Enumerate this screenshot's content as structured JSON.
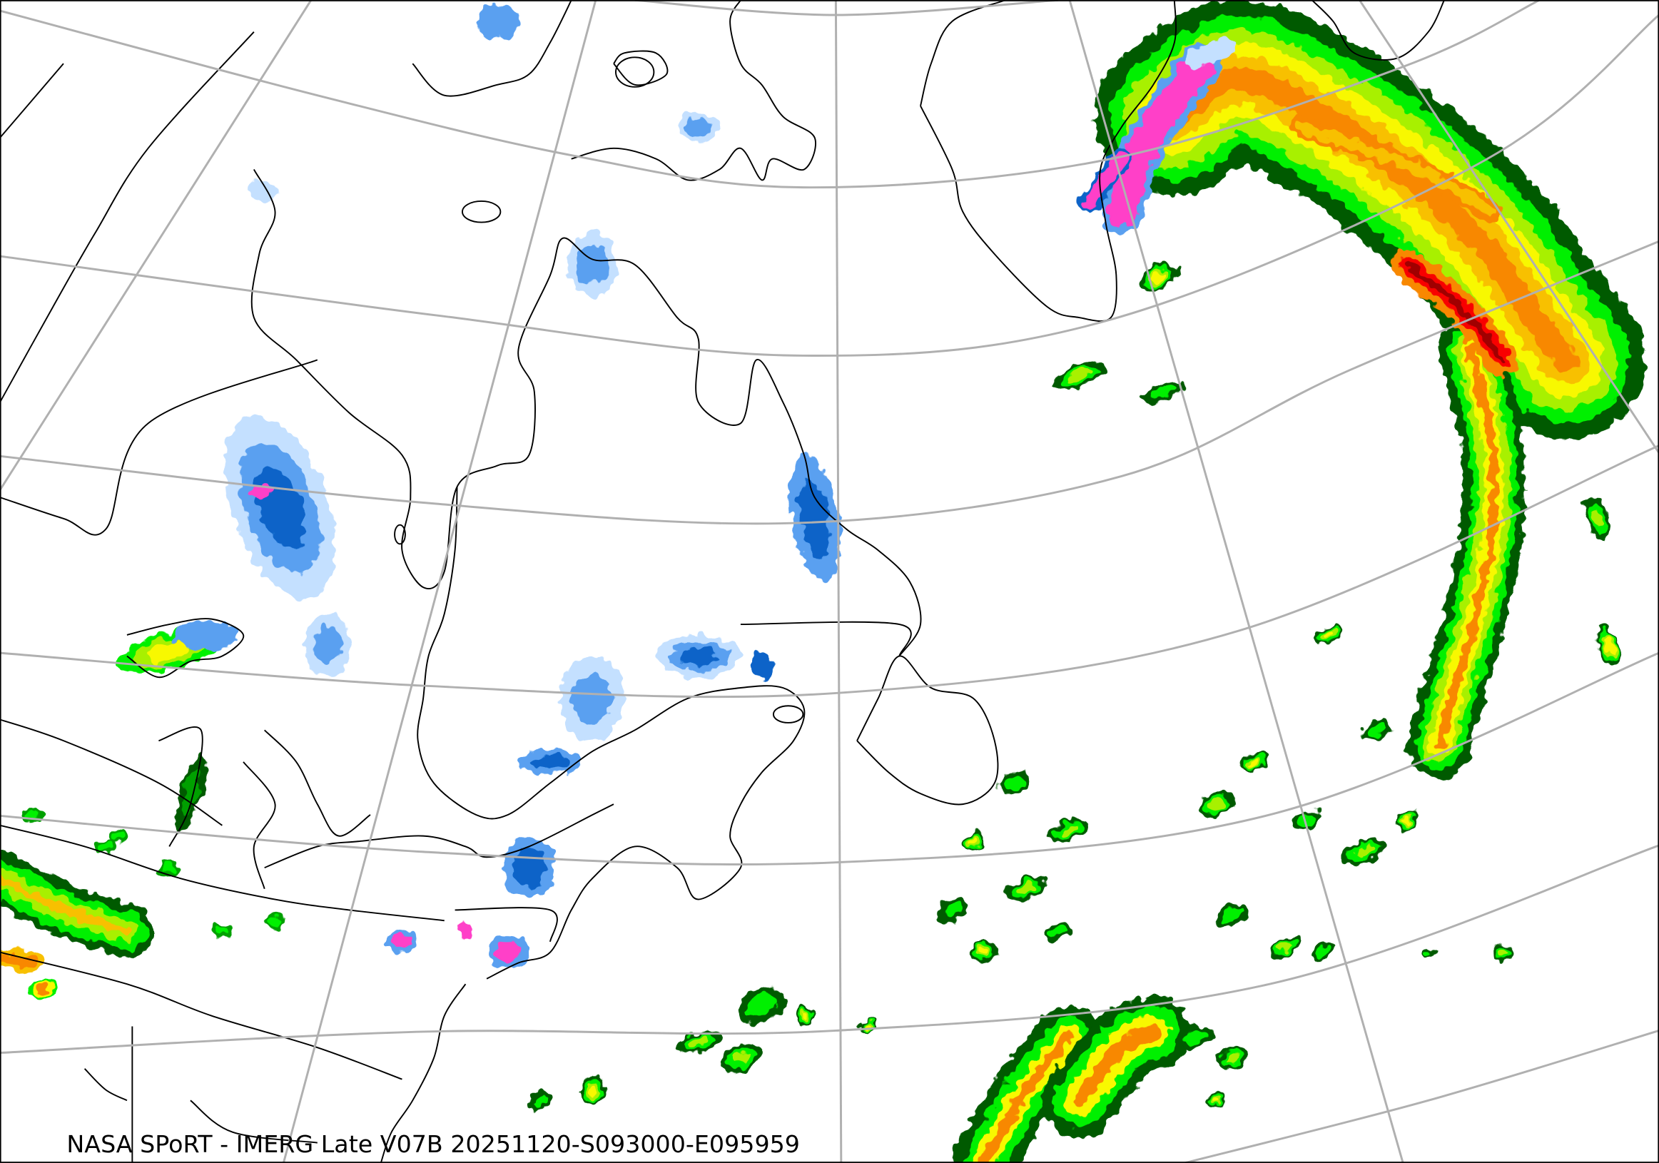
{
  "caption": "NASA SPoRT - IMERG Late V07B 20251120-S093000-E095959",
  "map": {
    "projection": "polar conic (graticule lines shown)",
    "graticule_color": "#b0b0b0",
    "coastline_color": "#000000",
    "background": "#ffffff"
  },
  "precip_colors": {
    "rain": [
      "#005a00",
      "#00a000",
      "#00f000",
      "#a8f000",
      "#f8f800",
      "#f8c000",
      "#f88800",
      "#f80000"
    ],
    "snow": [
      "#c4e0ff",
      "#5aa0f0",
      "#0a64c8"
    ],
    "mixed": "#ff40c8"
  }
}
